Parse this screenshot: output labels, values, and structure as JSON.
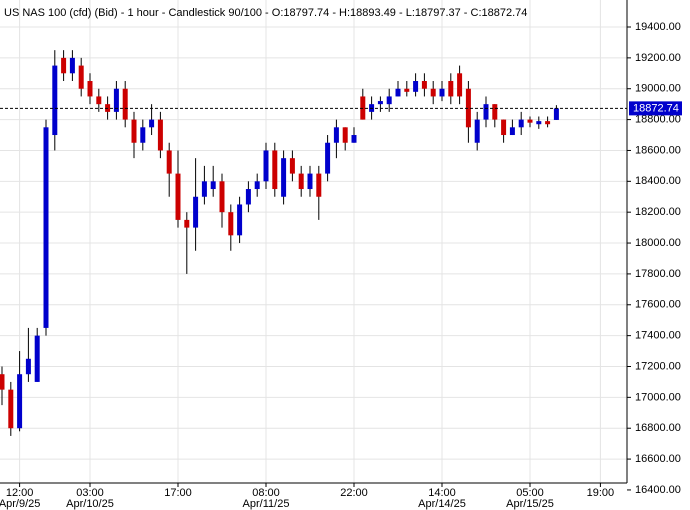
{
  "chart_data": {
    "type": "candlestick",
    "title": "US NAS 100 (cfd) (Bid) - 1 hour - Candlestick   90/100 - O:18797.74 - H:18893.49 - L:18797.37 - C:18872.74",
    "categories": [
      null,
      null,
      "12:00",
      null,
      null,
      null,
      null,
      null,
      null,
      null,
      "03:00",
      null,
      null,
      null,
      null,
      null,
      null,
      null,
      null,
      null,
      "17:00",
      null,
      null,
      null,
      null,
      null,
      null,
      null,
      null,
      null,
      "08:00",
      null,
      null,
      null,
      null,
      null,
      null,
      null,
      null,
      null,
      "22:00",
      null,
      null,
      null,
      null,
      null,
      null,
      null,
      null,
      null,
      "14:00",
      null,
      null,
      null,
      null,
      null,
      null,
      null,
      null,
      null,
      "05:00",
      null,
      null,
      null,
      null,
      null,
      null,
      null,
      "19:00"
    ],
    "dates": [
      null,
      null,
      "Apr/9/25",
      null,
      null,
      null,
      null,
      null,
      null,
      null,
      "Apr/10/25",
      null,
      null,
      null,
      null,
      null,
      null,
      null,
      null,
      null,
      null,
      null,
      null,
      null,
      null,
      null,
      null,
      null,
      null,
      null,
      "Apr/11/25",
      null,
      null,
      null,
      null,
      null,
      null,
      null,
      null,
      null,
      null,
      null,
      null,
      null,
      null,
      null,
      null,
      null,
      null,
      null,
      "Apr/14/25",
      null,
      null,
      null,
      null,
      null,
      null,
      null,
      null,
      null,
      "Apr/15/25",
      null,
      null,
      null,
      null,
      null,
      null,
      null,
      null
    ],
    "open": [
      17150,
      17050,
      16800,
      17150,
      17100,
      17450,
      18700,
      19200,
      19100,
      19150,
      19050,
      18950,
      18900,
      18850,
      19000,
      18800,
      18650,
      18750,
      18800,
      18600,
      18450,
      18150,
      18100,
      18300,
      18350,
      18400,
      18200,
      18050,
      18250,
      18350,
      18400,
      18600,
      18300,
      18550,
      18450,
      18350,
      18450,
      18450,
      18650,
      18750,
      18650,
      18950,
      18850,
      18900,
      18900,
      18950,
      19000,
      18980,
      19050,
      19000,
      18950,
      19050,
      19100,
      19000,
      18650,
      18800,
      18900,
      18800,
      18700,
      18750,
      18800,
      18770,
      18790,
      18797.74,
      null,
      null,
      null,
      null,
      null
    ],
    "high": [
      17200,
      17100,
      17300,
      17450,
      17450,
      18800,
      19250,
      19250,
      19250,
      19200,
      19100,
      19000,
      18950,
      19050,
      19050,
      18850,
      18800,
      18900,
      18850,
      18650,
      18600,
      18200,
      18550,
      18500,
      18500,
      18450,
      18250,
      18300,
      18400,
      18450,
      18650,
      18650,
      18600,
      18600,
      18500,
      18500,
      18500,
      18700,
      18800,
      18750,
      18750,
      19000,
      18950,
      18950,
      19000,
      19050,
      19050,
      19100,
      19100,
      19050,
      19050,
      19100,
      19150,
      19050,
      18850,
      18950,
      18900,
      18800,
      18800,
      18850,
      18820,
      18820,
      18820,
      18893.49,
      null,
      null,
      null,
      null,
      null
    ],
    "low": [
      16950,
      16750,
      16780,
      17100,
      17100,
      17400,
      18600,
      19050,
      19050,
      18950,
      18900,
      18850,
      18800,
      18800,
      18750,
      18550,
      18600,
      18700,
      18550,
      18300,
      18100,
      17800,
      17950,
      18250,
      18300,
      18100,
      17950,
      18000,
      18200,
      18300,
      18350,
      18300,
      18250,
      18400,
      18300,
      18300,
      18150,
      18400,
      18550,
      18600,
      18650,
      18800,
      18800,
      18850,
      18850,
      18950,
      18950,
      18950,
      18950,
      18900,
      18920,
      18900,
      18900,
      18650,
      18600,
      18750,
      18750,
      18650,
      18700,
      18700,
      18750,
      18740,
      18750,
      18797.37,
      null,
      null,
      null,
      null,
      null
    ],
    "close": [
      17050,
      16800,
      17150,
      17250,
      17400,
      18750,
      19150,
      19100,
      19200,
      19000,
      18950,
      18900,
      18850,
      19000,
      18800,
      18650,
      18750,
      18800,
      18600,
      18450,
      18150,
      18100,
      18300,
      18400,
      18400,
      18200,
      18050,
      18250,
      18350,
      18400,
      18600,
      18350,
      18550,
      18450,
      18350,
      18450,
      18300,
      18650,
      18750,
      18650,
      18700,
      18800,
      18900,
      18920,
      18950,
      19000,
      18980,
      19050,
      19000,
      18950,
      19000,
      18950,
      18950,
      18750,
      18800,
      18900,
      18800,
      18700,
      18750,
      18800,
      18780,
      18790,
      18770,
      18872.74,
      null,
      null,
      null,
      null,
      null
    ],
    "up_color": "#0000cc",
    "down_color": "#cc0000",
    "last_price": {
      "value": 18872.74,
      "label": "18872.74"
    },
    "ylim": [
      16445,
      19575
    ],
    "yticks": [
      {
        "value": 16400,
        "label": "16400.00"
      },
      {
        "value": 16600,
        "label": "16600.00"
      },
      {
        "value": 16800,
        "label": "16800.00"
      },
      {
        "value": 17000,
        "label": "17000.00"
      },
      {
        "value": 17200,
        "label": "17200.00"
      },
      {
        "value": 17400,
        "label": "17400.00"
      },
      {
        "value": 17600,
        "label": "17600.00"
      },
      {
        "value": 17800,
        "label": "17800.00"
      },
      {
        "value": 18000,
        "label": "18000.00"
      },
      {
        "value": 18200,
        "label": "18200.00"
      },
      {
        "value": 18400,
        "label": "18400.00"
      },
      {
        "value": 18600,
        "label": "18600.00"
      },
      {
        "value": 18800,
        "label": "18800.00"
      },
      {
        "value": 19000,
        "label": "19000.00"
      },
      {
        "value": 19200,
        "label": "19200.00"
      },
      {
        "value": 19400,
        "label": "19400.00"
      }
    ],
    "grid": true
  }
}
